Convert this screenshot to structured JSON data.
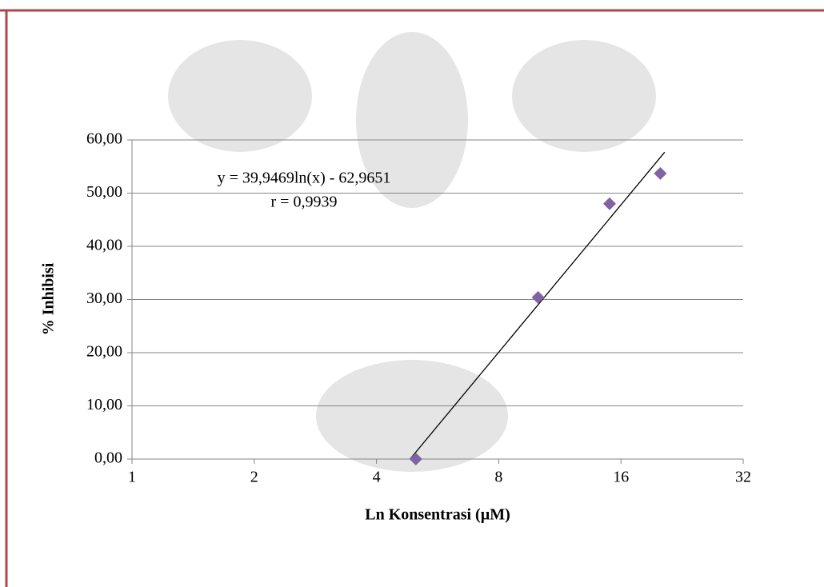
{
  "chart_data": {
    "type": "scatter",
    "x_label": "Ln Konsentrasi (µM)",
    "y_label": "% Inhibisi",
    "annotations": [
      "y = 39,9469ln(x) - 62,9651",
      "r = 0,9939"
    ],
    "x": [
      5,
      10,
      15,
      20
    ],
    "series": [
      {
        "name": "% Inhibisi",
        "color": "#8064a2",
        "values": [
          0,
          30.4,
          48,
          53.7
        ]
      }
    ],
    "trendline": {
      "x": [
        4.84,
        20.5
      ],
      "values": [
        0,
        57.7
      ],
      "color": "#000000"
    },
    "xlim": [
      1,
      32
    ],
    "xscale": "log2",
    "xticks": [
      1,
      2,
      4,
      8,
      16,
      32
    ],
    "ylim": [
      0,
      60
    ],
    "yticks": [
      {
        "value": 0,
        "label": "0,00"
      },
      {
        "value": 10,
        "label": "10,00"
      },
      {
        "value": 20,
        "label": "20,00"
      },
      {
        "value": 30,
        "label": "30,00"
      },
      {
        "value": 40,
        "label": "40,00"
      },
      {
        "value": 50,
        "label": "50,00"
      },
      {
        "value": 60,
        "label": "60,00"
      }
    ],
    "grid": true
  }
}
